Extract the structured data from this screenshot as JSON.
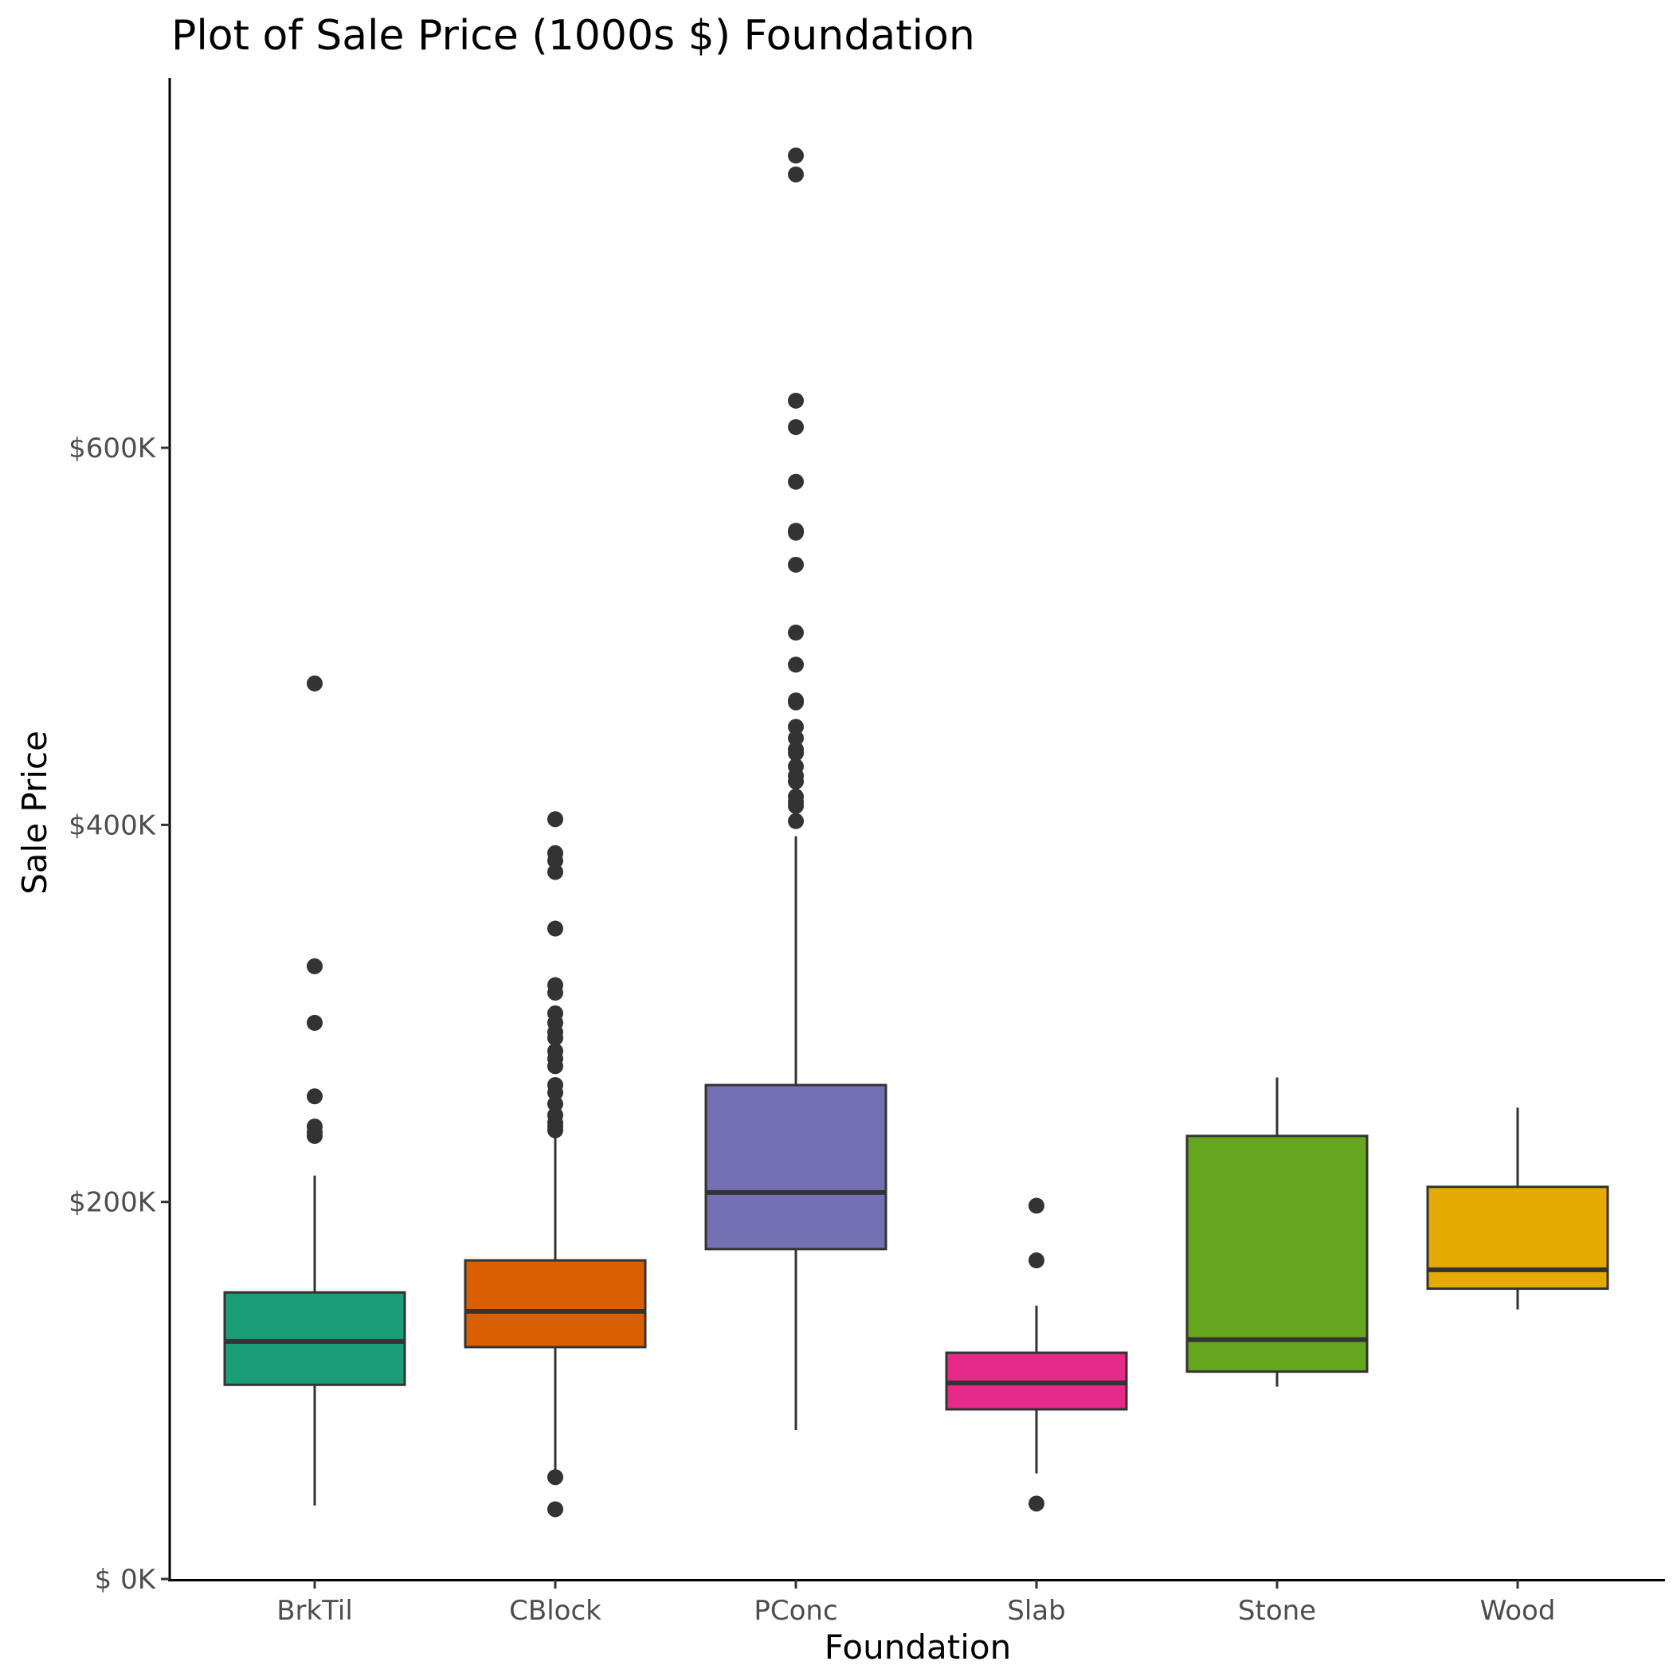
{
  "chart_data": {
    "type": "boxplot",
    "title": "Plot of Sale Price (1000s $) Foundation",
    "xlabel": "Foundation",
    "ylabel": "Sale Price",
    "ylim": [
      0,
      800
    ],
    "y_unit": "thousands of dollars",
    "y_ticks": [
      {
        "value": 0,
        "label": "$  0K"
      },
      {
        "value": 200,
        "label": "$200K"
      },
      {
        "value": 400,
        "label": "$400K"
      },
      {
        "value": 600,
        "label": "$600K"
      }
    ],
    "grid": false,
    "legend": "none",
    "categories": [
      "BrkTil",
      "CBlock",
      "PConc",
      "Slab",
      "Stone",
      "Wood"
    ],
    "colors": [
      "#1b9e77",
      "#d95f02",
      "#7570b3",
      "#e7298a",
      "#66a61e",
      "#e6ab02"
    ],
    "boxes": [
      {
        "category": "BrkTil",
        "whisker_low": 39,
        "q1": 103,
        "median": 126,
        "q3": 152,
        "whisker_high": 214,
        "outliers": [
          475,
          325,
          295,
          256,
          240,
          237,
          235
        ]
      },
      {
        "category": "CBlock",
        "whisker_low": 57,
        "q1": 123,
        "median": 142,
        "q3": 169,
        "whisker_high": 236,
        "outliers": [
          403,
          385,
          381,
          375,
          345,
          315,
          311,
          300,
          295,
          290,
          287,
          280,
          276,
          272,
          262,
          258,
          252,
          246,
          242,
          240,
          238,
          54,
          37
        ]
      },
      {
        "category": "PConc",
        "whisker_low": 79,
        "q1": 175,
        "median": 205,
        "q3": 262,
        "whisker_high": 394,
        "outliers": [
          755,
          745,
          625,
          611,
          582,
          556,
          555,
          538,
          502,
          485,
          466,
          465,
          452,
          446,
          440,
          438,
          431,
          426,
          423,
          415,
          412,
          410,
          402
        ]
      },
      {
        "category": "Slab",
        "whisker_low": 56,
        "q1": 90,
        "median": 104,
        "q3": 120,
        "whisker_high": 145,
        "outliers": [
          198,
          169,
          40
        ]
      },
      {
        "category": "Stone",
        "whisker_low": 102,
        "q1": 110,
        "median": 127,
        "q3": 235,
        "whisker_high": 266
      },
      {
        "category": "Wood",
        "whisker_low": 143,
        "q1": 154,
        "median": 164,
        "q3": 208,
        "whisker_high": 250
      }
    ]
  }
}
